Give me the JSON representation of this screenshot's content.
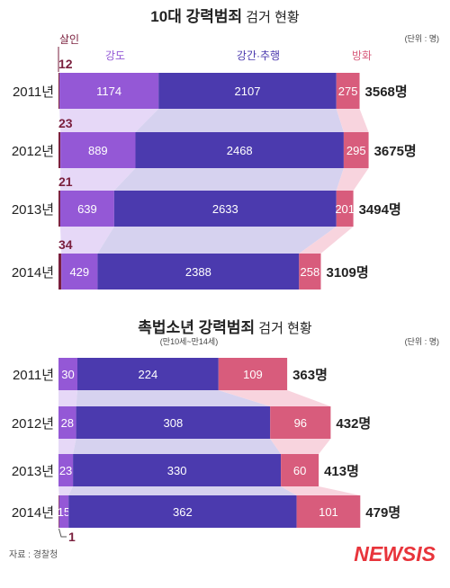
{
  "chart_data": [
    {
      "type": "bar",
      "title_bold": "10대 강력범죄",
      "title_rest": " 검거 현황",
      "unit_note": "(단위 : 명)",
      "categories": [
        "2011년",
        "2012년",
        "2013년",
        "2014년"
      ],
      "series": [
        {
          "name": "살인",
          "values": [
            12,
            23,
            21,
            34
          ],
          "color": "#7a1f3d"
        },
        {
          "name": "강도",
          "values": [
            1174,
            889,
            639,
            429
          ],
          "color": "#9458d6"
        },
        {
          "name": "강간·추행",
          "values": [
            2107,
            2468,
            2633,
            2388
          ],
          "color": "#4b3aae"
        },
        {
          "name": "방화",
          "values": [
            275,
            295,
            201,
            258
          ],
          "color": "#d85c7c"
        }
      ],
      "totals": [
        "3568명",
        "3675명",
        "3494명",
        "3109명"
      ],
      "stacked": true
    },
    {
      "type": "bar",
      "title_bold": "촉법소년 강력범죄",
      "title_rest": " 검거 현황",
      "subtitle": "(만10세~만14세)",
      "unit_note": "(단위 : 명)",
      "categories": [
        "2011년",
        "2012년",
        "2013년",
        "2014년"
      ],
      "series": [
        {
          "name": "살인",
          "values": [
            0,
            0,
            0,
            1
          ],
          "color": "#7a1f3d"
        },
        {
          "name": "강도",
          "values": [
            30,
            28,
            23,
            15
          ],
          "color": "#9458d6"
        },
        {
          "name": "강간·추행",
          "values": [
            224,
            308,
            330,
            362
          ],
          "color": "#4b3aae"
        },
        {
          "name": "방화",
          "values": [
            109,
            96,
            60,
            101
          ],
          "color": "#d85c7c"
        }
      ],
      "totals": [
        "363명",
        "432명",
        "413명",
        "479명"
      ],
      "callout": "1",
      "stacked": true
    }
  ],
  "source": "자료 : 경찰청",
  "logo": "NEWSIS",
  "colors": {
    "logo": "#e8343b",
    "band_purple": "#e6d8f7",
    "band_blue": "#d6d2ef",
    "band_pink": "#f8d4de"
  }
}
